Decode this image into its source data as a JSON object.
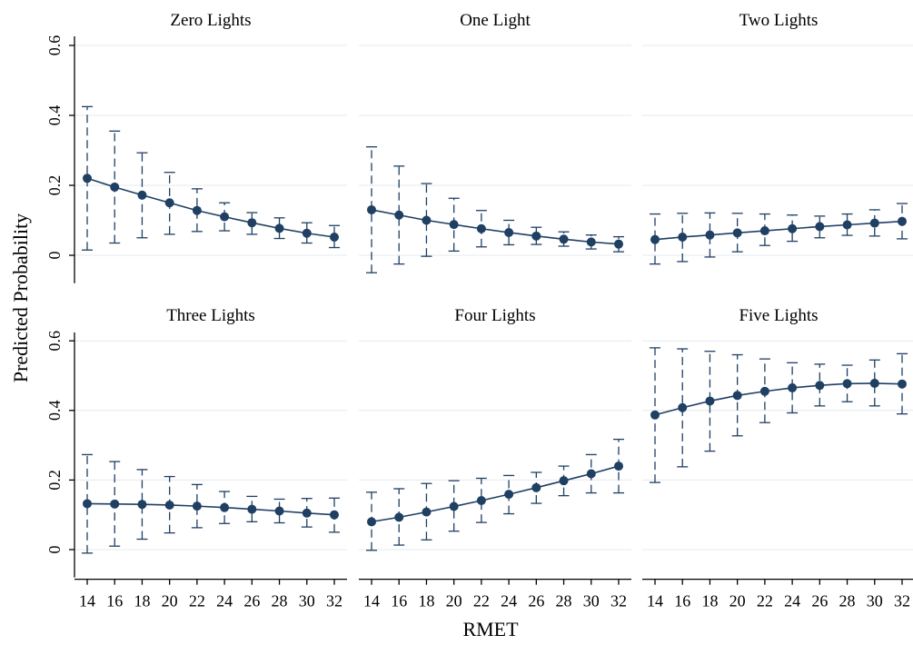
{
  "chart_data": {
    "type": "line",
    "ylabel": "Predicted Probability",
    "xlabel": "RMET",
    "x": [
      14,
      16,
      18,
      20,
      22,
      24,
      26,
      28,
      30,
      32
    ],
    "x_ticks": [
      "14",
      "16",
      "18",
      "20",
      "22",
      "24",
      "26",
      "28",
      "30",
      "32"
    ],
    "y_ticks": [
      "0",
      "0.2",
      "0.4",
      "0.6"
    ],
    "ylim": [
      -0.08,
      0.63
    ],
    "grid": "horizontal",
    "colors": {
      "series": "#1f3f63",
      "grid": "#e4e9ee",
      "axis": "#000000"
    },
    "panels": [
      {
        "title": "Zero Lights",
        "y": [
          0.22,
          0.195,
          0.172,
          0.15,
          0.128,
          0.11,
          0.093,
          0.077,
          0.063,
          0.052
        ],
        "lo": [
          0.015,
          0.035,
          0.05,
          0.06,
          0.068,
          0.07,
          0.06,
          0.048,
          0.035,
          0.022
        ],
        "hi": [
          0.425,
          0.355,
          0.293,
          0.237,
          0.19,
          0.15,
          0.122,
          0.107,
          0.093,
          0.085
        ]
      },
      {
        "title": "One Light",
        "y": [
          0.13,
          0.115,
          0.1,
          0.088,
          0.076,
          0.065,
          0.055,
          0.046,
          0.038,
          0.032
        ],
        "lo": [
          -0.05,
          -0.025,
          -0.003,
          0.012,
          0.024,
          0.03,
          0.031,
          0.026,
          0.018,
          0.01
        ],
        "hi": [
          0.31,
          0.255,
          0.205,
          0.163,
          0.128,
          0.1,
          0.08,
          0.067,
          0.058,
          0.053
        ]
      },
      {
        "title": "Two Lights",
        "y": [
          0.045,
          0.052,
          0.058,
          0.064,
          0.07,
          0.076,
          0.082,
          0.087,
          0.092,
          0.097
        ],
        "lo": [
          -0.025,
          -0.018,
          -0.005,
          0.01,
          0.028,
          0.04,
          0.05,
          0.057,
          0.055,
          0.047
        ],
        "hi": [
          0.118,
          0.12,
          0.121,
          0.12,
          0.118,
          0.115,
          0.112,
          0.118,
          0.13,
          0.148
        ]
      },
      {
        "title": "Three Lights",
        "y": [
          0.132,
          0.131,
          0.13,
          0.128,
          0.125,
          0.121,
          0.116,
          0.111,
          0.105,
          0.1
        ],
        "lo": [
          -0.01,
          0.01,
          0.03,
          0.048,
          0.063,
          0.075,
          0.08,
          0.077,
          0.065,
          0.05
        ],
        "hi": [
          0.273,
          0.253,
          0.23,
          0.21,
          0.187,
          0.167,
          0.153,
          0.145,
          0.147,
          0.148
        ]
      },
      {
        "title": "Four Lights",
        "y": [
          0.08,
          0.093,
          0.108,
          0.124,
          0.141,
          0.159,
          0.178,
          0.198,
          0.218,
          0.24
        ],
        "lo": [
          -0.002,
          0.013,
          0.028,
          0.053,
          0.078,
          0.103,
          0.133,
          0.155,
          0.163,
          0.163
        ],
        "hi": [
          0.165,
          0.175,
          0.19,
          0.198,
          0.205,
          0.213,
          0.222,
          0.24,
          0.273,
          0.317
        ]
      },
      {
        "title": "Five Lights",
        "y": [
          0.387,
          0.408,
          0.427,
          0.443,
          0.455,
          0.465,
          0.472,
          0.477,
          0.478,
          0.476
        ],
        "lo": [
          0.193,
          0.238,
          0.283,
          0.327,
          0.365,
          0.393,
          0.413,
          0.425,
          0.413,
          0.39
        ],
        "hi": [
          0.58,
          0.577,
          0.57,
          0.56,
          0.548,
          0.537,
          0.533,
          0.53,
          0.545,
          0.563
        ]
      }
    ]
  }
}
